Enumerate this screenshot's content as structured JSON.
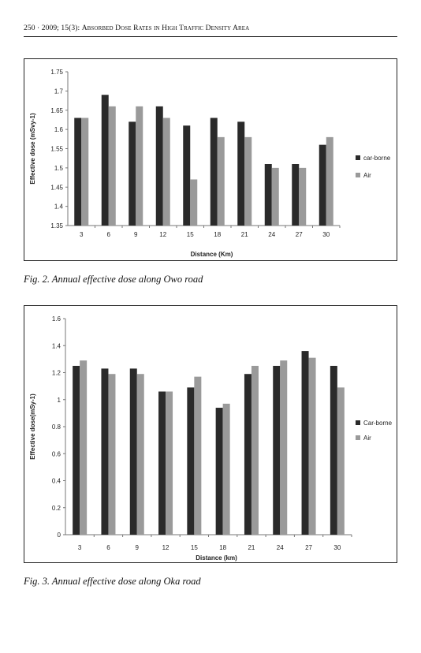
{
  "header": {
    "page": "250",
    "journal": "2009; 15(3):",
    "title": "Absorbed Dose Rates in High Traffic Density Area"
  },
  "figures": [
    {
      "caption": "Fig. 2. Annual effective dose along Owo road",
      "chart_data": {
        "type": "bar",
        "title": "",
        "xlabel": "Distance (Km)",
        "ylabel": "Effective dose (mSvy-1)",
        "categories": [
          "3",
          "6",
          "9",
          "12",
          "15",
          "18",
          "21",
          "24",
          "27",
          "30"
        ],
        "series": [
          {
            "name": "car-borne",
            "color": "#2a2a2a",
            "values": [
              1.63,
              1.69,
              1.62,
              1.66,
              1.61,
              1.63,
              1.62,
              1.51,
              1.51,
              1.56
            ]
          },
          {
            "name": "Air",
            "color": "#9a9a9a",
            "values": [
              1.63,
              1.66,
              1.66,
              1.63,
              1.47,
              1.58,
              1.58,
              1.5,
              1.5,
              1.58
            ]
          }
        ],
        "ylim": [
          1.35,
          1.75
        ],
        "yticks": [
          "1.35",
          "1.4",
          "1.45",
          "1.5",
          "1.55",
          "1.6",
          "1.65",
          "1.7",
          "1.75"
        ],
        "grid": false,
        "legend": "right"
      }
    },
    {
      "caption": "Fig. 3. Annual effective dose along Oka road",
      "chart_data": {
        "type": "bar",
        "title": "",
        "xlabel": "Distance (km)",
        "ylabel": "Effective dose(mSy-1)",
        "categories": [
          "3",
          "6",
          "9",
          "12",
          "15",
          "18",
          "21",
          "24",
          "27",
          "30"
        ],
        "series": [
          {
            "name": "Car-borne",
            "color": "#2a2a2a",
            "values": [
              1.25,
              1.23,
              1.23,
              1.06,
              1.09,
              0.94,
              1.19,
              1.25,
              1.36,
              1.25
            ]
          },
          {
            "name": "Air",
            "color": "#9a9a9a",
            "values": [
              1.29,
              1.19,
              1.19,
              1.06,
              1.17,
              0.97,
              1.25,
              1.29,
              1.31,
              1.09
            ]
          }
        ],
        "ylim": [
          0,
          1.6
        ],
        "yticks": [
          "0",
          "0.2",
          "0.4",
          "0.6",
          "0.8",
          "1",
          "1.2",
          "1.4",
          "1.6"
        ],
        "grid": false,
        "legend": "right"
      }
    }
  ]
}
